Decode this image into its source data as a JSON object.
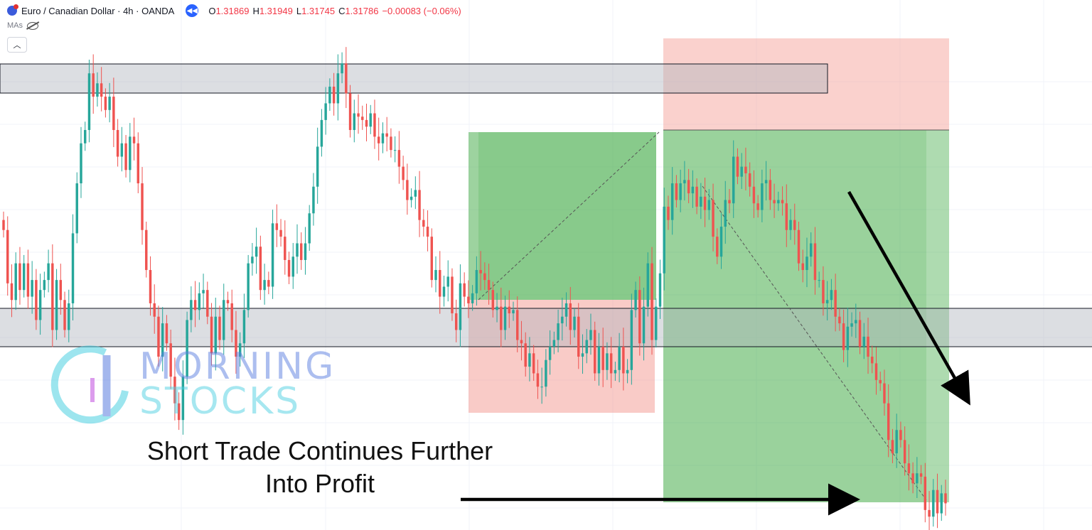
{
  "header": {
    "symbol": "Euro / Canadian Dollar · 4h · OANDA",
    "o_label": "O",
    "o_value": "1.31869",
    "h_label": "H",
    "h_value": "1.31949",
    "l_label": "L",
    "l_value": "1.31745",
    "c_label": "C",
    "c_value": "1.31786",
    "change": "−0.00083 (−0.06%)",
    "mas_label": "MAs",
    "collapse_icon": "chevron-up-icon"
  },
  "watermark": {
    "line1": "MORNING",
    "line2": "STOCKS"
  },
  "caption": {
    "line1": "Short Trade Continues Further",
    "line2": "Into Profit"
  },
  "colors": {
    "bull": "#26a69a",
    "bear": "#ef5350",
    "profit": "#4caf50",
    "stop": "#f28b82",
    "zone": "#b2b5be",
    "arrow": "#000000",
    "watermark": "#7c9cf0"
  },
  "chart_data": {
    "type": "candlestick",
    "symbol": "EURCAD",
    "timeframe": "4h",
    "ylim": [
      1.3046,
      1.3205
    ],
    "support_zone": [
      1.3085,
      1.3097
    ],
    "resistance_zone": [
      1.3182,
      1.3191
    ],
    "long_position": {
      "entry": 1.3098,
      "target": 1.3148,
      "stop": 1.3066
    },
    "short_position": {
      "entry": 1.3149,
      "target": 1.305,
      "stop": 1.3176
    },
    "closes": [
      1.3136,
      1.312,
      1.3115,
      1.3126,
      1.3118,
      1.3126,
      1.3116,
      1.3121,
      1.3109,
      1.3118,
      1.3121,
      1.3126,
      1.3106,
      1.3121,
      1.3115,
      1.3106,
      1.3114,
      1.3135,
      1.315,
      1.3162,
      1.3166,
      1.3183,
      1.3176,
      1.318,
      1.3176,
      1.3172,
      1.3176,
      1.3166,
      1.3158,
      1.3162,
      1.3154,
      1.3164,
      1.3162,
      1.315,
      1.3136,
      1.3124,
      1.3114,
      1.311,
      1.3098,
      1.3108,
      1.3102,
      1.3092,
      1.3084,
      1.3079,
      1.3092,
      1.3109,
      1.3115,
      1.3112,
      1.3117,
      1.3118,
      1.311,
      1.3099,
      1.311,
      1.3103,
      1.3115,
      1.3114,
      1.3106,
      1.3098,
      1.3102,
      1.3112,
      1.3126,
      1.3128,
      1.3131,
      1.3118,
      1.3121,
      1.3119,
      1.3138,
      1.3136,
      1.3134,
      1.3127,
      1.3122,
      1.3128,
      1.3132,
      1.3127,
      1.3132,
      1.3141,
      1.3149,
      1.3161,
      1.3169,
      1.3174,
      1.3179,
      1.3174,
      1.3183,
      1.3186,
      1.3177,
      1.3166,
      1.3171,
      1.317,
      1.3169,
      1.3167,
      1.3171,
      1.3164,
      1.3162,
      1.3165,
      1.3164,
      1.316,
      1.316,
      1.3155,
      1.3151,
      1.3145,
      1.3146,
      1.3148,
      1.3139,
      1.3137,
      1.3134,
      1.3121,
      1.3124,
      1.3116,
      1.3119,
      1.3122,
      1.3111,
      1.3106,
      1.312,
      1.3116,
      1.3114,
      1.3117,
      1.3124,
      1.3123,
      1.3121,
      1.3118,
      1.3112,
      1.3113,
      1.3106,
      1.3113,
      1.3111,
      1.3112,
      1.3103,
      1.3102,
      1.3095,
      1.3099,
      1.3093,
      1.3089,
      1.3089,
      1.3097,
      1.3101,
      1.3103,
      1.3108,
      1.311,
      1.3114,
      1.3106,
      1.311,
      1.3098,
      1.3099,
      1.3103,
      1.3106,
      1.3093,
      1.3101,
      1.3094,
      1.3099,
      1.3093,
      1.3094,
      1.3101,
      1.3093,
      1.3094,
      1.3112,
      1.3118,
      1.3102,
      1.3113,
      1.3126,
      1.3103,
      1.3113,
      1.3123,
      1.3143,
      1.3139,
      1.315,
      1.3145,
      1.315,
      1.3151,
      1.3147,
      1.3149,
      1.3143,
      1.3146,
      1.3142,
      1.3145,
      1.3134,
      1.3128,
      1.3137,
      1.3145,
      1.3144,
      1.3158,
      1.3152,
      1.3155,
      1.3153,
      1.3149,
      1.3144,
      1.3142,
      1.315,
      1.3151,
      1.3145,
      1.3144,
      1.3145,
      1.3144,
      1.3136,
      1.3139,
      1.3136,
      1.3126,
      1.3124,
      1.3128,
      1.3132,
      1.3121,
      1.3121,
      1.3114,
      1.3115,
      1.3118,
      1.311,
      1.3108,
      1.31,
      1.3107,
      1.3108,
      1.3109,
      1.3101,
      1.3104,
      1.3098,
      1.3096,
      1.3091,
      1.309,
      1.3084,
      1.3073,
      1.3069,
      1.3076,
      1.3073,
      1.3066,
      1.3063,
      1.306,
      1.3063,
      1.3062,
      1.3052,
      1.305,
      1.3058,
      1.3051,
      1.3057,
      1.3054
    ]
  }
}
